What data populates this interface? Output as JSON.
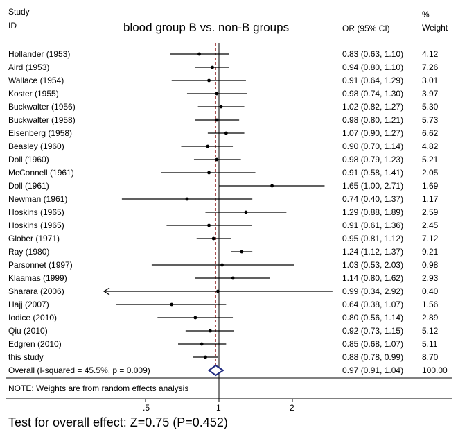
{
  "headers": {
    "study": "Study",
    "id": "ID",
    "or": "OR (95% CI)",
    "pct": "%",
    "weight": "Weight"
  },
  "chart_data": {
    "type": "forest",
    "title": "blood group B vs. non-B groups",
    "x_scale": "log",
    "xlim": [
      0.3,
      3.0
    ],
    "ticks": [
      {
        "value": 0.5,
        "label": ".5"
      },
      {
        "value": 1,
        "label": "1"
      },
      {
        "value": 2,
        "label": "2"
      }
    ],
    "null_value": 1,
    "overall_line_value": 0.97,
    "studies": [
      {
        "label": "Hollander  (1953)",
        "or": 0.83,
        "lo": 0.63,
        "hi": 1.1,
        "ci_text": "0.83 (0.63, 1.10)",
        "weight": "4.12"
      },
      {
        "label": "Aird  (1953)",
        "or": 0.94,
        "lo": 0.8,
        "hi": 1.1,
        "ci_text": "0.94 (0.80, 1.10)",
        "weight": "7.26"
      },
      {
        "label": "Wallace  (1954)",
        "or": 0.91,
        "lo": 0.64,
        "hi": 1.29,
        "ci_text": "0.91 (0.64, 1.29)",
        "weight": "3.01"
      },
      {
        "label": "Koster  (1955)",
        "or": 0.98,
        "lo": 0.74,
        "hi": 1.3,
        "ci_text": "0.98 (0.74, 1.30)",
        "weight": "3.97"
      },
      {
        "label": "Buckwalter  (1956)",
        "or": 1.02,
        "lo": 0.82,
        "hi": 1.27,
        "ci_text": "1.02 (0.82, 1.27)",
        "weight": "5.30"
      },
      {
        "label": "Buckwalter  (1958)",
        "or": 0.98,
        "lo": 0.8,
        "hi": 1.21,
        "ci_text": "0.98 (0.80, 1.21)",
        "weight": "5.73"
      },
      {
        "label": "Eisenberg  (1958)",
        "or": 1.07,
        "lo": 0.9,
        "hi": 1.27,
        "ci_text": "1.07 (0.90, 1.27)",
        "weight": "6.62"
      },
      {
        "label": "Beasley  (1960)",
        "or": 0.9,
        "lo": 0.7,
        "hi": 1.14,
        "ci_text": "0.90 (0.70, 1.14)",
        "weight": "4.82"
      },
      {
        "label": "Doll  (1960)",
        "or": 0.98,
        "lo": 0.79,
        "hi": 1.23,
        "ci_text": "0.98 (0.79, 1.23)",
        "weight": "5.21"
      },
      {
        "label": "McConnell  (1961)",
        "or": 0.91,
        "lo": 0.58,
        "hi": 1.41,
        "ci_text": "0.91 (0.58, 1.41)",
        "weight": "2.05"
      },
      {
        "label": "Doll  (1961)",
        "or": 1.65,
        "lo": 1.0,
        "hi": 2.71,
        "ci_text": "1.65 (1.00, 2.71)",
        "weight": "1.69"
      },
      {
        "label": "Newman  (1961)",
        "or": 0.74,
        "lo": 0.4,
        "hi": 1.37,
        "ci_text": "0.74 (0.40, 1.37)",
        "weight": "1.17"
      },
      {
        "label": "Hoskins  (1965)",
        "or": 1.29,
        "lo": 0.88,
        "hi": 1.89,
        "ci_text": "1.29 (0.88, 1.89)",
        "weight": "2.59"
      },
      {
        "label": "Hoskins  (1965)",
        "or": 0.91,
        "lo": 0.61,
        "hi": 1.36,
        "ci_text": "0.91 (0.61, 1.36)",
        "weight": "2.45"
      },
      {
        "label": "Glober  (1971)",
        "or": 0.95,
        "lo": 0.81,
        "hi": 1.12,
        "ci_text": "0.95 (0.81, 1.12)",
        "weight": "7.12"
      },
      {
        "label": "Ray  (1980)",
        "or": 1.24,
        "lo": 1.12,
        "hi": 1.37,
        "ci_text": "1.24 (1.12, 1.37)",
        "weight": "9.21"
      },
      {
        "label": "Parsonnet  (1997)",
        "or": 1.03,
        "lo": 0.53,
        "hi": 2.03,
        "ci_text": "1.03 (0.53, 2.03)",
        "weight": "0.98"
      },
      {
        "label": "Klaamas  (1999)",
        "or": 1.14,
        "lo": 0.8,
        "hi": 1.62,
        "ci_text": "1.14 (0.80, 1.62)",
        "weight": "2.93"
      },
      {
        "label": "Sharara  (2006)",
        "or": 0.99,
        "lo": 0.34,
        "hi": 2.92,
        "ci_text": "0.99 (0.34, 2.92)",
        "weight": "0.40",
        "lo_clipped": true
      },
      {
        "label": "Hajj  (2007)",
        "or": 0.64,
        "lo": 0.38,
        "hi": 1.07,
        "ci_text": "0.64 (0.38, 1.07)",
        "weight": "1.56"
      },
      {
        "label": "Iodice  (2010)",
        "or": 0.8,
        "lo": 0.56,
        "hi": 1.14,
        "ci_text": "0.80 (0.56, 1.14)",
        "weight": "2.89"
      },
      {
        "label": "Qiu  (2010)",
        "or": 0.92,
        "lo": 0.73,
        "hi": 1.15,
        "ci_text": "0.92 (0.73, 1.15)",
        "weight": "5.12"
      },
      {
        "label": "Edgren  (2010)",
        "or": 0.85,
        "lo": 0.68,
        "hi": 1.07,
        "ci_text": "0.85 (0.68, 1.07)",
        "weight": "5.11"
      },
      {
        "label": "this study",
        "or": 0.88,
        "lo": 0.78,
        "hi": 0.99,
        "ci_text": "0.88 (0.78, 0.99)",
        "weight": "8.70"
      }
    ],
    "overall": {
      "label": "Overall  (I-squared = 45.5%, p = 0.009)",
      "or": 0.97,
      "lo": 0.91,
      "hi": 1.04,
      "ci_text": "0.97 (0.91, 1.04)",
      "weight": "100.00"
    },
    "note": "NOTE: Weights are from random effects analysis",
    "colors": {
      "diamond": "#1f2a80",
      "null_line": "#000000",
      "overall_line": "#9b3030",
      "marks": "#000000"
    }
  },
  "footer": {
    "test_text": "Test for overall effect: Z=0.75 (P=0.452)"
  }
}
